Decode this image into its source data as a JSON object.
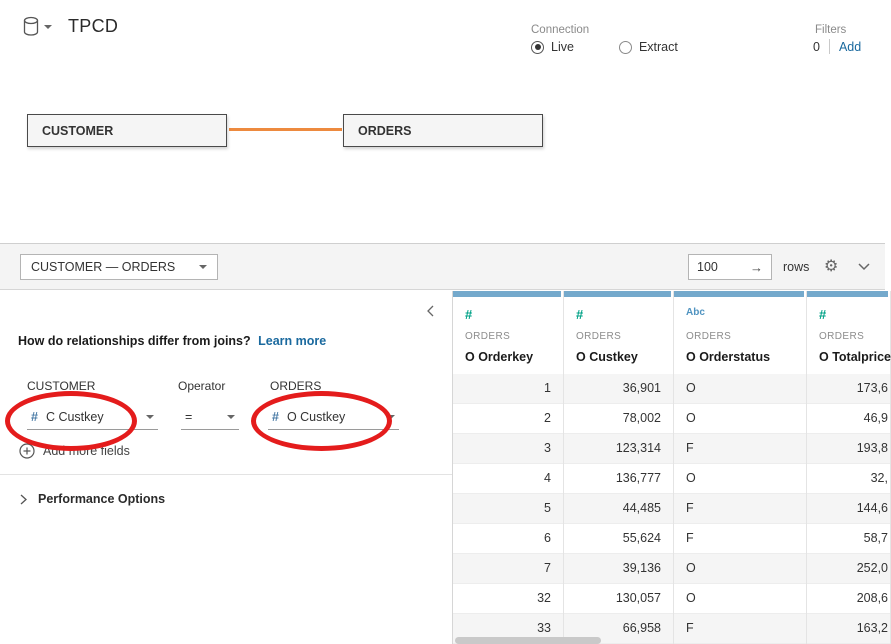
{
  "header": {
    "title": "TPCD",
    "connection": {
      "label": "Connection",
      "options": [
        {
          "label": "Live",
          "selected": true
        },
        {
          "label": "Extract",
          "selected": false
        }
      ]
    },
    "filters": {
      "label": "Filters",
      "count": "0",
      "add_label": "Add"
    }
  },
  "canvas": {
    "tables": [
      {
        "name": "CUSTOMER"
      },
      {
        "name": "ORDERS"
      }
    ]
  },
  "toolbar": {
    "relationship_selector": "CUSTOMER  —  ORDERS",
    "rows_value": "100",
    "rows_label": "rows"
  },
  "relationship_editor": {
    "question": "How do relationships differ from joins?",
    "learn_more_label": "Learn more",
    "left_table_label": "CUSTOMER",
    "operator_label": "Operator",
    "right_table_label": "ORDERS",
    "left_field_icon": "#",
    "left_field": "C Custkey",
    "operator_value": "=",
    "right_field_icon": "#",
    "right_field": "O Custkey",
    "add_more_fields_label": "Add more fields",
    "performance_options_label": "Performance Options"
  },
  "grid": {
    "columns": [
      {
        "type": "number",
        "type_icon": "#",
        "table": "ORDERS",
        "field": "O Orderkey"
      },
      {
        "type": "number",
        "type_icon": "#",
        "table": "ORDERS",
        "field": "O Custkey"
      },
      {
        "type": "string",
        "type_icon": "Abc",
        "table": "ORDERS",
        "field": "O Orderstatus"
      },
      {
        "type": "number",
        "type_icon": "#",
        "table": "ORDERS",
        "field": "O Totalprice"
      }
    ],
    "rows": [
      [
        "1",
        "36,901",
        "O",
        "173,6"
      ],
      [
        "2",
        "78,002",
        "O",
        "46,9"
      ],
      [
        "3",
        "123,314",
        "F",
        "193,8"
      ],
      [
        "4",
        "136,777",
        "O",
        "32,"
      ],
      [
        "5",
        "44,485",
        "F",
        "144,6"
      ],
      [
        "6",
        "55,624",
        "F",
        "58,7"
      ],
      [
        "7",
        "39,136",
        "O",
        "252,0"
      ],
      [
        "32",
        "130,057",
        "O",
        "208,6"
      ],
      [
        "33",
        "66,958",
        "F",
        "163,2"
      ]
    ]
  },
  "colors": {
    "noodle_orange": "#ED8A3F",
    "link_blue": "#1A699E",
    "field_number_blue": "#4A7BA6",
    "grid_number_teal": "#00A287",
    "grid_string_blue": "#4F93C0",
    "grid_strip_blue": "#74A9CC",
    "annotation_red": "#E41C1C"
  }
}
